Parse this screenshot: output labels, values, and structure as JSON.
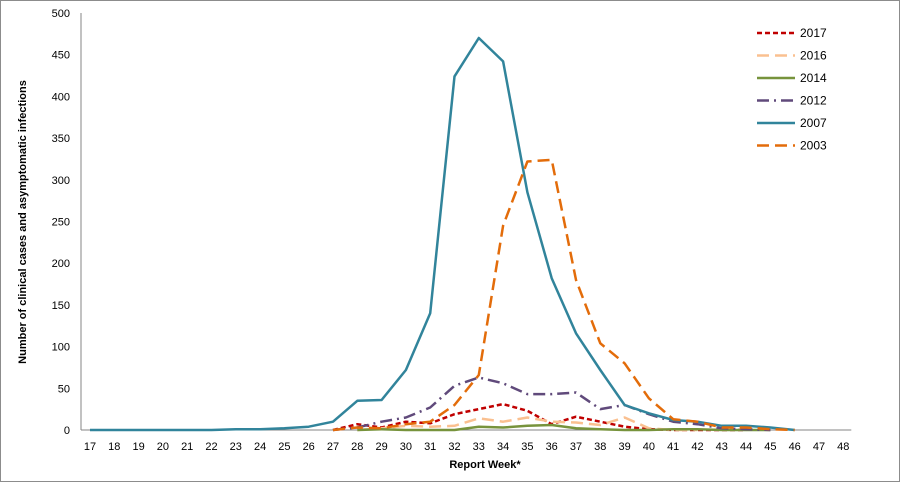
{
  "chart_data": {
    "type": "line",
    "title": "",
    "xlabel": "Report Week*",
    "ylabel": "Number of clinical cases and asymptomatic infections",
    "ylim": [
      0,
      500
    ],
    "yticks": [
      0,
      50,
      100,
      150,
      200,
      250,
      300,
      350,
      400,
      450,
      500
    ],
    "categories": [
      "17",
      "18",
      "19",
      "20",
      "21",
      "22",
      "23",
      "24",
      "25",
      "26",
      "27",
      "28",
      "29",
      "30",
      "31",
      "32",
      "33",
      "34",
      "35",
      "36",
      "37",
      "38",
      "39",
      "40",
      "41",
      "42",
      "43",
      "44",
      "45",
      "46",
      "47",
      "48"
    ],
    "grid": false,
    "legend_position": "top-right",
    "series": [
      {
        "name": "2017",
        "color": "#c00000",
        "dash": "short-dash",
        "x": [
          27,
          28,
          29,
          30,
          31,
          32,
          33,
          34,
          35,
          36,
          37,
          38,
          39,
          40,
          41,
          42,
          43,
          44
        ],
        "y": [
          0,
          7,
          3,
          10,
          8,
          19,
          25,
          31,
          23,
          7,
          16,
          10,
          4,
          1,
          0,
          0,
          0,
          0
        ]
      },
      {
        "name": "2016",
        "color": "#fac090",
        "dash": "long-dash",
        "x": [
          28,
          29,
          30,
          31,
          32,
          33,
          34,
          35,
          36,
          37,
          38,
          39,
          40,
          41,
          42
        ],
        "y": [
          0,
          2,
          5,
          4,
          5,
          14,
          10,
          15,
          10,
          9,
          6,
          15,
          2,
          0,
          0
        ]
      },
      {
        "name": "2014",
        "color": "#77933c",
        "dash": "solid",
        "x": [
          28,
          29,
          30,
          31,
          32,
          33,
          34,
          35,
          36,
          37,
          38,
          39,
          40,
          41,
          42,
          43,
          44,
          45
        ],
        "y": [
          0,
          1,
          0,
          0,
          0,
          4,
          3,
          5,
          6,
          2,
          1,
          0,
          0,
          1,
          1,
          0,
          0,
          0
        ]
      },
      {
        "name": "2012",
        "color": "#604a7b",
        "dash": "dash-dot",
        "x": [
          27,
          28,
          29,
          30,
          31,
          32,
          33,
          34,
          35,
          36,
          37,
          38,
          39,
          40,
          41,
          42,
          43,
          44,
          45
        ],
        "y": [
          0,
          3,
          10,
          15,
          27,
          53,
          63,
          56,
          43,
          43,
          45,
          25,
          30,
          19,
          10,
          7,
          2,
          1,
          0
        ]
      },
      {
        "name": "2007",
        "color": "#31849b",
        "dash": "solid",
        "x": [
          17,
          18,
          19,
          20,
          21,
          22,
          23,
          24,
          25,
          26,
          27,
          28,
          29,
          30,
          31,
          32,
          33,
          34,
          35,
          36,
          37,
          38,
          39,
          40,
          41,
          42,
          43,
          44,
          45,
          46
        ],
        "y": [
          0,
          0,
          0,
          0,
          0,
          0,
          1,
          1,
          2,
          4,
          10,
          35,
          36,
          72,
          140,
          424,
          470,
          442,
          285,
          182,
          116,
          72,
          30,
          20,
          12,
          10,
          5,
          5,
          3,
          0
        ]
      },
      {
        "name": "2003",
        "color": "#e36c0a",
        "dash": "long-dash",
        "x": [
          27,
          28,
          29,
          30,
          31,
          32,
          33,
          34,
          35,
          36,
          37,
          38,
          39,
          40,
          41,
          42,
          43,
          44,
          45,
          46
        ],
        "y": [
          0,
          3,
          2,
          7,
          10,
          30,
          66,
          245,
          322,
          324,
          180,
          104,
          80,
          38,
          13,
          10,
          3,
          3,
          1,
          0
        ]
      }
    ]
  }
}
